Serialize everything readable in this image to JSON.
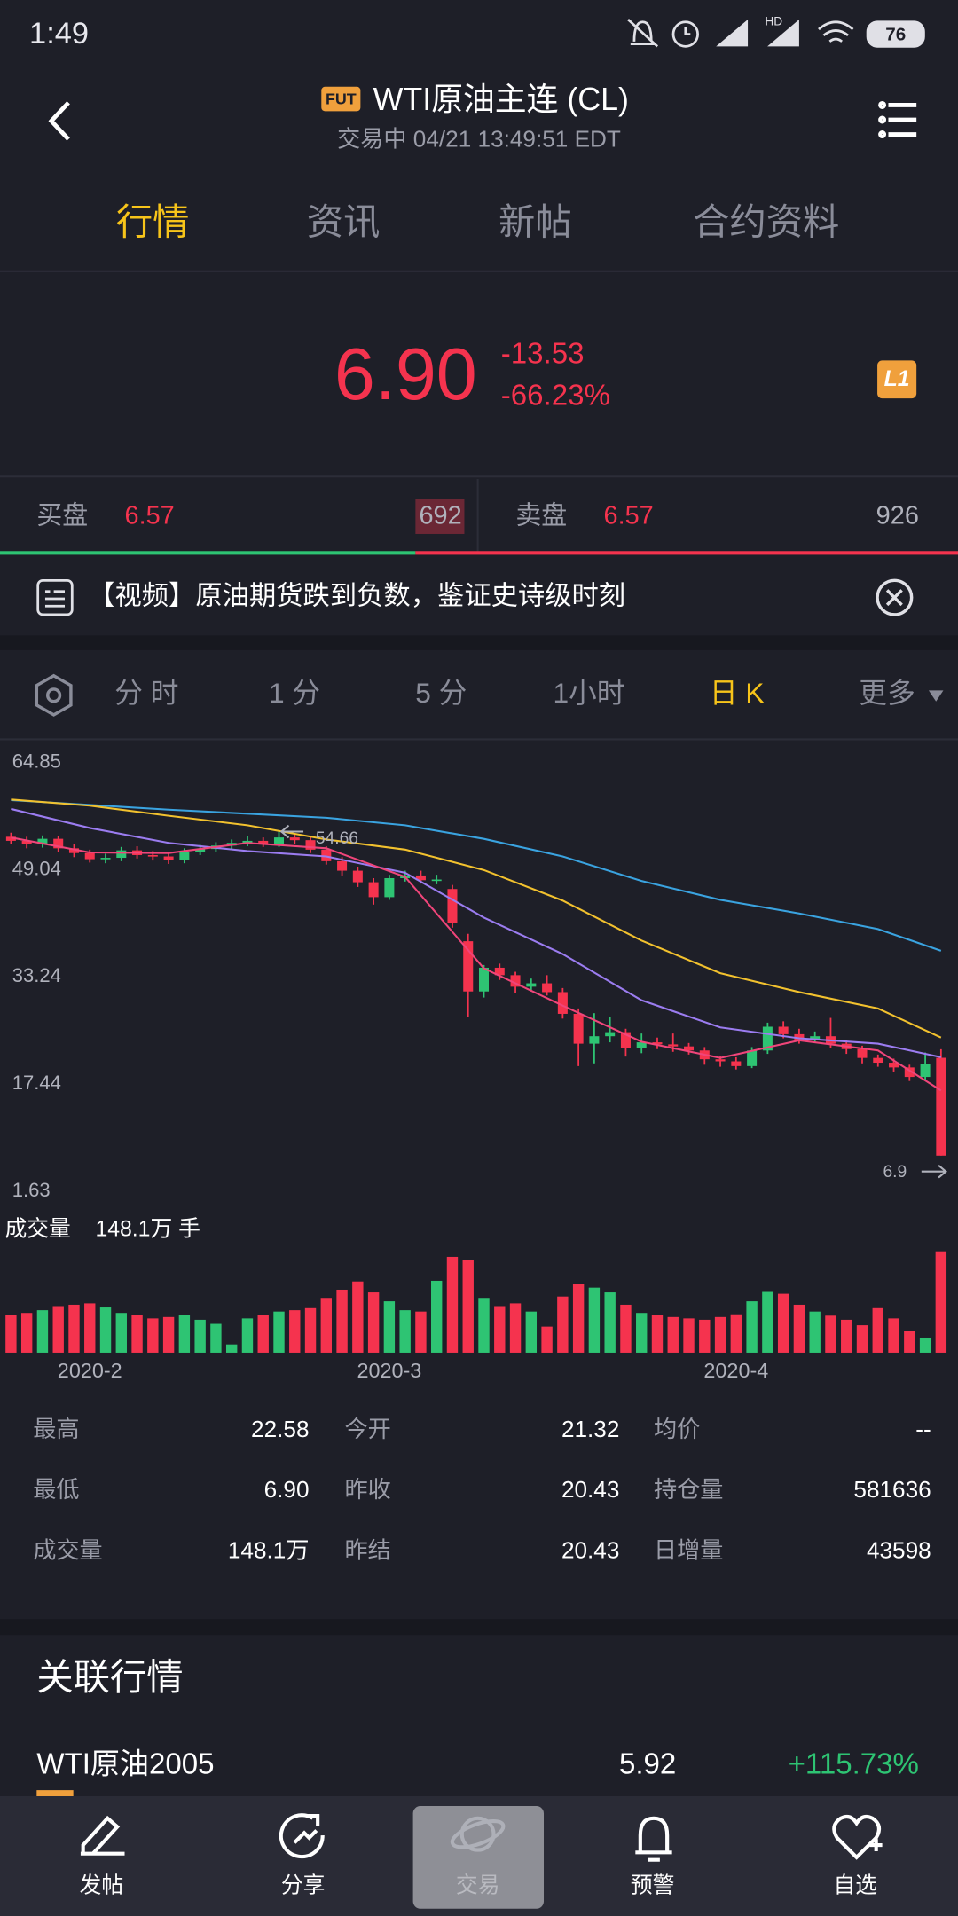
{
  "status_bar": {
    "time": "1:49",
    "hd": "HD",
    "battery": "76"
  },
  "header": {
    "badge": "FUT",
    "title": "WTI原油主连 (CL)",
    "subtitle": "交易中 04/21 13:49:51 EDT"
  },
  "tabs": [
    "行情",
    "资讯",
    "新帖",
    "合约资料"
  ],
  "quote": {
    "price": "6.90",
    "change": "-13.53",
    "change_pct": "-66.23%",
    "badge": "L1"
  },
  "order_book": {
    "bid_label": "买盘",
    "bid_price": "6.57",
    "bid_size": "692",
    "ask_label": "卖盘",
    "ask_price": "6.57",
    "ask_size": "926"
  },
  "news": "【视频】原油期货跌到负数，鉴证史诗级时刻",
  "period_tabs": [
    "分 时",
    "1 分",
    "5 分",
    "1小时",
    "日 K",
    "更多"
  ],
  "chart_data": {
    "type": "candlestick",
    "open": [
      53.9,
      53.3,
      52.8,
      53.6,
      52.2,
      51.5,
      50.6,
      50.8,
      51.9,
      51.2,
      51.0,
      50.5,
      51.7,
      52.1,
      52.6,
      53.0,
      53.3,
      52.9,
      53.8,
      53.4,
      52.0,
      50.3,
      48.9,
      47.2,
      45.0,
      47.8,
      48.2,
      47.5,
      46.2,
      38.5,
      31.1,
      34.6,
      33.5,
      31.8,
      32.3,
      31.0,
      27.8,
      23.4,
      24.5,
      25.1,
      22.8,
      23.6,
      23.3,
      23.0,
      22.4,
      21.1,
      20.8,
      20.1,
      22.4,
      25.9,
      24.8,
      24.0,
      24.5,
      23.4,
      22.6,
      21.3,
      20.6,
      19.9,
      18.5,
      21.32
    ],
    "high": [
      54.5,
      53.9,
      54.1,
      54.0,
      52.8,
      52.0,
      51.4,
      52.4,
      52.5,
      51.8,
      51.5,
      52.2,
      52.7,
      53.1,
      53.5,
      54.0,
      53.8,
      54.66,
      54.2,
      53.9,
      52.5,
      50.9,
      49.5,
      47.8,
      48.3,
      48.9,
      48.9,
      48.3,
      46.8,
      39.6,
      35.0,
      35.2,
      34.0,
      33.0,
      33.5,
      31.6,
      28.6,
      27.9,
      27.3,
      25.6,
      24.9,
      24.3,
      24.9,
      23.5,
      22.9,
      21.6,
      21.4,
      22.9,
      26.5,
      26.7,
      25.6,
      25.2,
      27.2,
      24.0,
      23.1,
      21.8,
      21.2,
      20.3,
      22.1,
      22.58
    ],
    "low": [
      52.8,
      52.2,
      52.3,
      51.7,
      50.9,
      50.1,
      50.0,
      50.3,
      50.7,
      50.4,
      49.9,
      50.0,
      51.2,
      51.6,
      52.1,
      52.5,
      52.4,
      52.4,
      52.9,
      51.5,
      49.8,
      48.2,
      46.5,
      43.9,
      44.6,
      47.3,
      47.0,
      46.9,
      40.5,
      27.3,
      30.2,
      32.8,
      30.9,
      31.1,
      30.5,
      27.1,
      20.1,
      20.5,
      23.6,
      21.5,
      22.0,
      22.6,
      22.2,
      21.8,
      20.3,
      20.0,
      19.6,
      19.8,
      21.9,
      24.2,
      23.4,
      23.5,
      22.8,
      21.9,
      20.5,
      20.0,
      19.3,
      17.9,
      18.0,
      6.9
    ],
    "close": [
      53.3,
      52.8,
      53.6,
      52.2,
      51.5,
      50.6,
      50.8,
      51.9,
      51.2,
      51.0,
      50.5,
      51.7,
      52.1,
      52.6,
      53.0,
      53.3,
      52.9,
      53.8,
      53.4,
      52.0,
      50.3,
      48.9,
      47.2,
      45.0,
      47.8,
      48.2,
      47.5,
      47.6,
      41.2,
      31.1,
      34.6,
      33.5,
      31.8,
      32.3,
      31.0,
      27.8,
      23.4,
      24.5,
      25.1,
      22.8,
      23.6,
      23.3,
      23.0,
      22.4,
      21.1,
      20.8,
      20.1,
      22.4,
      25.9,
      24.8,
      24.0,
      24.5,
      23.4,
      22.6,
      21.3,
      20.6,
      19.9,
      18.5,
      20.43,
      6.9
    ],
    "volume": [
      55,
      58,
      62,
      68,
      70,
      72,
      66,
      58,
      55,
      50,
      52,
      55,
      48,
      42,
      12,
      50,
      55,
      60,
      62,
      65,
      80,
      92,
      104,
      88,
      75,
      62,
      60,
      105,
      140,
      135,
      80,
      68,
      72,
      60,
      38,
      82,
      100,
      95,
      88,
      70,
      58,
      55,
      52,
      50,
      48,
      52,
      56,
      75,
      90,
      86,
      70,
      60,
      54,
      48,
      40,
      65,
      50,
      32,
      22,
      148.1
    ],
    "up_color": "#2ec473",
    "down_color": "#f5334e",
    "ylim": [
      1.63,
      64.85
    ],
    "yticks": [
      64.85,
      49.04,
      33.24,
      17.44,
      1.63
    ],
    "vol_ylim": [
      0,
      150
    ],
    "grid": false,
    "xticks": [
      {
        "value": 5,
        "label": "2020-2"
      },
      {
        "value": 24,
        "label": "2020-3"
      },
      {
        "value": 46,
        "label": "2020-4"
      }
    ],
    "ma_x": [
      0,
      5,
      10,
      15,
      20,
      25,
      30,
      35,
      40,
      45,
      50,
      55,
      59
    ],
    "series": [
      {
        "color": "#3aa3e0",
        "values": [
          59.3,
          58.6,
          57.9,
          57.3,
          56.7,
          55.6,
          53.6,
          51.0,
          47.4,
          44.6,
          42.6,
          40.3,
          37.1
        ]
      },
      {
        "color": "#f2c12e",
        "values": [
          59.4,
          58.5,
          57.0,
          55.6,
          53.5,
          52.0,
          49.0,
          44.5,
          38.6,
          33.8,
          31.0,
          28.6,
          24.3
        ]
      },
      {
        "color": "#9b7cf0",
        "values": [
          58.0,
          55.2,
          53.0,
          51.8,
          51.0,
          48.6,
          42.0,
          36.6,
          29.8,
          25.8,
          24.2,
          23.4,
          21.4
        ]
      },
      {
        "color": "#f0457a",
        "values": [
          53.8,
          51.6,
          51.5,
          53.0,
          52.2,
          48.0,
          34.5,
          29.0,
          23.7,
          21.3,
          23.9,
          22.4,
          16.5
        ]
      }
    ],
    "high_marker": {
      "index": 17,
      "value": 54.66
    },
    "low_marker": {
      "index": 59,
      "value": 6.9
    },
    "volume_label": "成交量",
    "volume_text": "148.1万 手"
  },
  "stats": [
    [
      "最高",
      "22.58",
      "今开",
      "21.32",
      "均价",
      "--"
    ],
    [
      "最低",
      "6.90",
      "昨收",
      "20.43",
      "持仓量",
      "581636"
    ],
    [
      "成交量",
      "148.1万",
      "昨结",
      "20.43",
      "日增量",
      "43598"
    ]
  ],
  "related": {
    "title": "关联行情",
    "rows": [
      {
        "name": "WTI原油2005",
        "price": "5.92",
        "change": "+115.73%"
      }
    ]
  },
  "nav": [
    "发帖",
    "分享",
    "交易",
    "预警",
    "自选"
  ]
}
